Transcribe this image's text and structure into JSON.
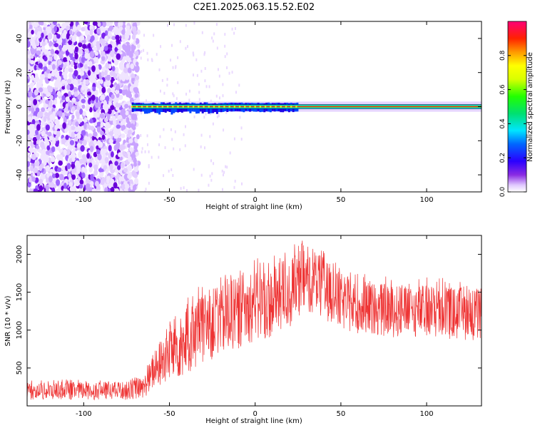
{
  "title": "C2E1.2025.063.15.52.E02",
  "chart_data": [
    {
      "type": "heatmap",
      "xlabel": "Height of straight line (km)",
      "ylabel": "Frequency (Hz)",
      "xlim": [
        -133,
        132
      ],
      "ylim": [
        -50,
        50
      ],
      "xticks": [
        -100,
        -50,
        0,
        50,
        100
      ],
      "yticks": [
        40,
        20,
        0,
        -20,
        -40
      ],
      "colorbar": {
        "label": "Normalized spectral amplitude",
        "range": [
          0,
          1
        ],
        "ticks": [
          0.0,
          0.2,
          0.4,
          0.6,
          0.8
        ]
      },
      "features": {
        "noise_region_x": [
          -133,
          -68
        ],
        "signal_line_frequency_hz": 0,
        "signal_start_x": -72,
        "strong_segment_x": [
          -72,
          25
        ]
      }
    },
    {
      "type": "line",
      "xlabel": "Height of straight line (km)",
      "ylabel": "SNR (10 * v/v)",
      "xlim": [
        -133,
        132
      ],
      "ylim": [
        0,
        2250
      ],
      "xticks": [
        -100,
        -50,
        0,
        50,
        100
      ],
      "yticks": [
        2000,
        1500,
        1000,
        500
      ],
      "series": [
        {
          "color": "#ee3333",
          "envelope_x": [
            -133,
            -100,
            -75,
            -65,
            -60,
            -55,
            -50,
            -40,
            -30,
            -20,
            -10,
            0,
            10,
            20,
            30,
            40,
            50,
            60,
            80,
            100,
            132
          ],
          "envelope_low": [
            80,
            80,
            80,
            100,
            200,
            250,
            300,
            400,
            550,
            650,
            750,
            850,
            900,
            1000,
            1250,
            1150,
            1000,
            950,
            900,
            900,
            850
          ],
          "envelope_high": [
            300,
            320,
            320,
            380,
            650,
            900,
            1100,
            1300,
            1500,
            1600,
            1700,
            1800,
            1850,
            1950,
            2100,
            1950,
            1750,
            1650,
            1600,
            1600,
            1550
          ]
        }
      ]
    }
  ]
}
